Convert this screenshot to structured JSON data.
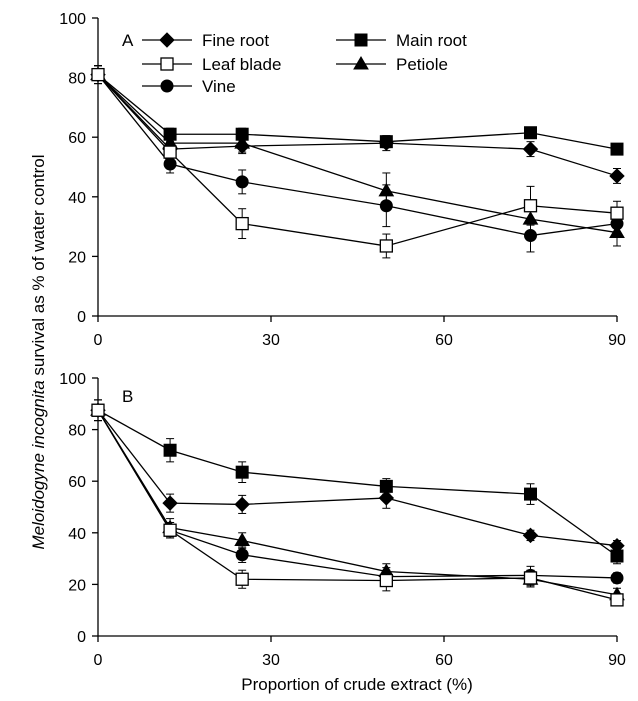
{
  "y_axis_label_italic": "Meloidogyne incognita",
  "y_axis_label_rest": " survival as % of water control",
  "x_axis_label": "Proportion of crude extract (%)",
  "chart_data": [
    {
      "type": "line",
      "panel": "A",
      "x": [
        0,
        12.5,
        25,
        50,
        75,
        90
      ],
      "xlim": [
        0,
        90
      ],
      "ylim": [
        0,
        100
      ],
      "xticks": [
        "0",
        "30",
        "60",
        "90"
      ],
      "yticks": [
        "0",
        "20",
        "40",
        "60",
        "80",
        "100"
      ],
      "legend": "top",
      "series": [
        {
          "name": "Fine root",
          "marker": "diamond",
          "values": [
            81,
            56,
            57,
            58,
            56,
            47
          ],
          "errors": [
            3,
            2.5,
            2.5,
            2.5,
            2.5,
            2.5
          ]
        },
        {
          "name": "Main root",
          "marker": "square-filled",
          "values": [
            81,
            61,
            61,
            58.5,
            61.5,
            56
          ],
          "errors": [
            3,
            2,
            2,
            2,
            1.5,
            1.5
          ]
        },
        {
          "name": "Leaf blade",
          "marker": "square-open",
          "values": [
            81,
            55,
            31,
            23.5,
            37,
            34.5
          ],
          "errors": [
            3,
            3,
            5,
            4,
            6.5,
            4
          ]
        },
        {
          "name": "Petiole",
          "marker": "triangle",
          "values": [
            81,
            58,
            58,
            42,
            32.5,
            28
          ],
          "errors": [
            3,
            3,
            3,
            6,
            5.5,
            4.5
          ]
        },
        {
          "name": "Vine",
          "marker": "circle",
          "values": [
            81,
            51,
            45,
            37,
            27,
            31
          ],
          "errors": [
            3,
            3,
            4,
            7,
            5.5,
            4
          ]
        }
      ]
    },
    {
      "type": "line",
      "panel": "B",
      "x": [
        0,
        12.5,
        25,
        50,
        75,
        90
      ],
      "xlim": [
        0,
        90
      ],
      "ylim": [
        0,
        100
      ],
      "xticks": [
        "0",
        "30",
        "60",
        "90"
      ],
      "yticks": [
        "0",
        "20",
        "40",
        "60",
        "80",
        "100"
      ],
      "series": [
        {
          "name": "Fine root",
          "marker": "diamond",
          "values": [
            87.5,
            51.5,
            51,
            53.5,
            39,
            35
          ],
          "errors": [
            4,
            3.5,
            3.5,
            4,
            2,
            2
          ]
        },
        {
          "name": "Main root",
          "marker": "square-filled",
          "values": [
            87.5,
            72,
            63.5,
            58,
            55,
            31
          ],
          "errors": [
            4,
            4.5,
            4,
            3,
            4,
            3
          ]
        },
        {
          "name": "Leaf blade",
          "marker": "square-open",
          "values": [
            87.5,
            41,
            22,
            21.5,
            22.5,
            14
          ],
          "errors": [
            4,
            3,
            3.5,
            4,
            3,
            2
          ]
        },
        {
          "name": "Petiole",
          "marker": "triangle",
          "values": [
            87.5,
            42,
            37,
            25,
            22,
            16
          ],
          "errors": [
            4,
            3.5,
            3,
            3,
            3,
            2.5
          ]
        },
        {
          "name": "Vine",
          "marker": "circle",
          "values": [
            87.5,
            41,
            31.5,
            23,
            23.5,
            22.5
          ],
          "errors": [
            4,
            3,
            3,
            3.5,
            3.5,
            2
          ]
        }
      ]
    }
  ]
}
